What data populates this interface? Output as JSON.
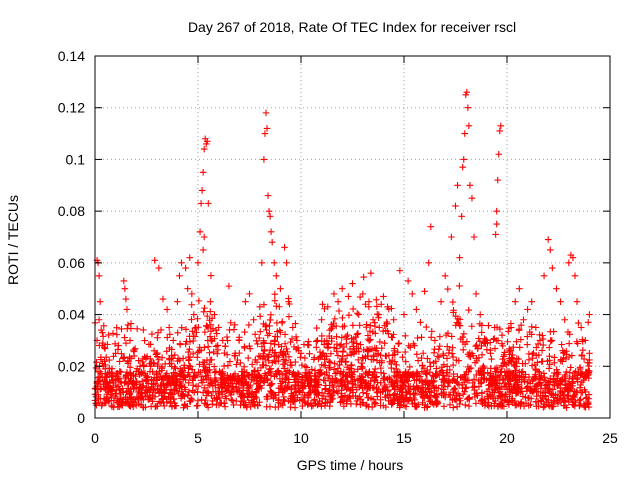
{
  "chart_data": {
    "type": "scatter",
    "title": "Day 267 of 2018, Rate Of TEC Index for receiver rscl",
    "xlabel": "GPS time / hours",
    "ylabel": "ROTI / TECUs",
    "xlim": [
      0,
      25
    ],
    "ylim": [
      0,
      0.14
    ],
    "x_ticks": [
      "0",
      "5",
      "10",
      "15",
      "20",
      "25"
    ],
    "y_ticks": [
      "0",
      "0.02",
      "0.04",
      "0.06",
      "0.08",
      "0.1",
      "0.12",
      "0.14"
    ],
    "x_tick_values": [
      0,
      5,
      10,
      15,
      20,
      25
    ],
    "y_tick_values": [
      0,
      0.02,
      0.04,
      0.06,
      0.08,
      0.1,
      0.12,
      0.14
    ],
    "grid": true,
    "marker": "+",
    "color": "#ff0000",
    "series": [
      {
        "name": "ROTI",
        "points": [
          [
            0.1,
            0.061
          ],
          [
            0.15,
            0.06
          ],
          [
            0.2,
            0.055
          ],
          [
            0.25,
            0.045
          ],
          [
            0.2,
            0.038
          ],
          [
            0.3,
            0.034
          ],
          [
            0.1,
            0.03
          ],
          [
            0.35,
            0.028
          ],
          [
            0.4,
            0.02
          ],
          [
            0.5,
            0.014
          ],
          [
            0.6,
            0.012
          ],
          [
            0.8,
            0.016
          ],
          [
            1.0,
            0.025
          ],
          [
            1.2,
            0.018
          ],
          [
            1.4,
            0.053
          ],
          [
            1.45,
            0.05
          ],
          [
            1.5,
            0.046
          ],
          [
            1.55,
            0.042
          ],
          [
            1.6,
            0.036
          ],
          [
            1.7,
            0.03
          ],
          [
            1.9,
            0.024
          ],
          [
            2.0,
            0.018
          ],
          [
            2.2,
            0.012
          ],
          [
            2.5,
            0.015
          ],
          [
            2.7,
            0.02
          ],
          [
            2.9,
            0.061
          ],
          [
            3.1,
            0.058
          ],
          [
            3.3,
            0.046
          ],
          [
            3.5,
            0.042
          ],
          [
            3.6,
            0.035
          ],
          [
            3.8,
            0.03
          ],
          [
            4.0,
            0.045
          ],
          [
            4.1,
            0.055
          ],
          [
            4.2,
            0.06
          ],
          [
            4.4,
            0.058
          ],
          [
            4.5,
            0.05
          ],
          [
            4.6,
            0.062
          ],
          [
            4.7,
            0.048
          ],
          [
            4.8,
            0.04
          ],
          [
            4.9,
            0.035
          ],
          [
            5.0,
            0.06
          ],
          [
            5.1,
            0.072
          ],
          [
            5.15,
            0.083
          ],
          [
            5.2,
            0.088
          ],
          [
            5.25,
            0.095
          ],
          [
            5.3,
            0.104
          ],
          [
            5.35,
            0.108
          ],
          [
            5.4,
            0.106
          ],
          [
            5.45,
            0.107
          ],
          [
            5.5,
            0.083
          ],
          [
            5.3,
            0.07
          ],
          [
            5.25,
            0.065
          ],
          [
            5.6,
            0.045
          ],
          [
            5.8,
            0.04
          ],
          [
            6.0,
            0.035
          ],
          [
            6.2,
            0.03
          ],
          [
            6.5,
            0.051
          ],
          [
            6.8,
            0.025
          ],
          [
            7.0,
            0.03
          ],
          [
            7.3,
            0.045
          ],
          [
            7.5,
            0.048
          ],
          [
            7.7,
            0.038
          ],
          [
            8.0,
            0.043
          ],
          [
            8.1,
            0.06
          ],
          [
            8.2,
            0.1
          ],
          [
            8.25,
            0.11
          ],
          [
            8.3,
            0.118
          ],
          [
            8.35,
            0.112
          ],
          [
            8.4,
            0.086
          ],
          [
            8.45,
            0.08
          ],
          [
            8.5,
            0.078
          ],
          [
            8.55,
            0.072
          ],
          [
            8.6,
            0.068
          ],
          [
            8.7,
            0.06
          ],
          [
            8.8,
            0.055
          ],
          [
            9.0,
            0.05
          ],
          [
            9.2,
            0.066
          ],
          [
            9.3,
            0.06
          ],
          [
            9.4,
            0.045
          ],
          [
            9.6,
            0.035
          ],
          [
            9.8,
            0.03
          ],
          [
            10.0,
            0.025
          ],
          [
            10.2,
            0.02
          ],
          [
            10.5,
            0.015
          ],
          [
            10.8,
            0.03
          ],
          [
            11.0,
            0.038
          ],
          [
            11.3,
            0.043
          ],
          [
            11.6,
            0.048
          ],
          [
            11.8,
            0.045
          ],
          [
            12.0,
            0.05
          ],
          [
            12.3,
            0.047
          ],
          [
            12.5,
            0.052
          ],
          [
            12.8,
            0.04
          ],
          [
            13.0,
            0.048
          ],
          [
            13.3,
            0.045
          ],
          [
            13.5,
            0.038
          ],
          [
            13.8,
            0.035
          ],
          [
            14.0,
            0.047
          ],
          [
            14.2,
            0.043
          ],
          [
            14.5,
            0.038
          ],
          [
            14.8,
            0.057
          ],
          [
            15.0,
            0.04
          ],
          [
            15.2,
            0.053
          ],
          [
            15.4,
            0.048
          ],
          [
            15.6,
            0.042
          ],
          [
            15.8,
            0.037
          ],
          [
            16.0,
            0.049
          ],
          [
            16.2,
            0.06
          ],
          [
            16.3,
            0.074
          ],
          [
            16.5,
            0.03
          ],
          [
            16.8,
            0.045
          ],
          [
            17.0,
            0.055
          ],
          [
            17.3,
            0.07
          ],
          [
            17.5,
            0.082
          ],
          [
            17.6,
            0.09
          ],
          [
            17.7,
            0.062
          ],
          [
            17.8,
            0.078
          ],
          [
            17.85,
            0.097
          ],
          [
            17.9,
            0.1
          ],
          [
            17.95,
            0.11
          ],
          [
            18.0,
            0.125
          ],
          [
            18.05,
            0.126
          ],
          [
            18.1,
            0.12
          ],
          [
            18.15,
            0.113
          ],
          [
            18.2,
            0.09
          ],
          [
            18.3,
            0.085
          ],
          [
            18.4,
            0.07
          ],
          [
            18.5,
            0.048
          ],
          [
            18.7,
            0.04
          ],
          [
            19.0,
            0.03
          ],
          [
            19.2,
            0.025
          ],
          [
            19.4,
            0.035
          ],
          [
            19.5,
            0.08
          ],
          [
            19.55,
            0.092
          ],
          [
            19.6,
            0.102
          ],
          [
            19.65,
            0.111
          ],
          [
            19.7,
            0.113
          ],
          [
            19.45,
            0.071
          ],
          [
            19.5,
            0.075
          ],
          [
            19.8,
            0.02
          ],
          [
            20.0,
            0.018
          ],
          [
            20.2,
            0.035
          ],
          [
            20.4,
            0.045
          ],
          [
            20.6,
            0.05
          ],
          [
            20.8,
            0.038
          ],
          [
            21.0,
            0.042
          ],
          [
            21.2,
            0.045
          ],
          [
            21.4,
            0.035
          ],
          [
            21.6,
            0.03
          ],
          [
            21.8,
            0.055
          ],
          [
            22.0,
            0.069
          ],
          [
            22.1,
            0.065
          ],
          [
            22.2,
            0.058
          ],
          [
            22.4,
            0.05
          ],
          [
            22.6,
            0.045
          ],
          [
            22.8,
            0.038
          ],
          [
            23.0,
            0.06
          ],
          [
            23.1,
            0.063
          ],
          [
            23.2,
            0.062
          ],
          [
            23.3,
            0.055
          ],
          [
            23.4,
            0.045
          ],
          [
            23.6,
            0.035
          ],
          [
            23.8,
            0.03
          ],
          [
            24.0,
            0.04
          ],
          [
            24.0,
            0.025
          ]
        ]
      }
    ]
  }
}
